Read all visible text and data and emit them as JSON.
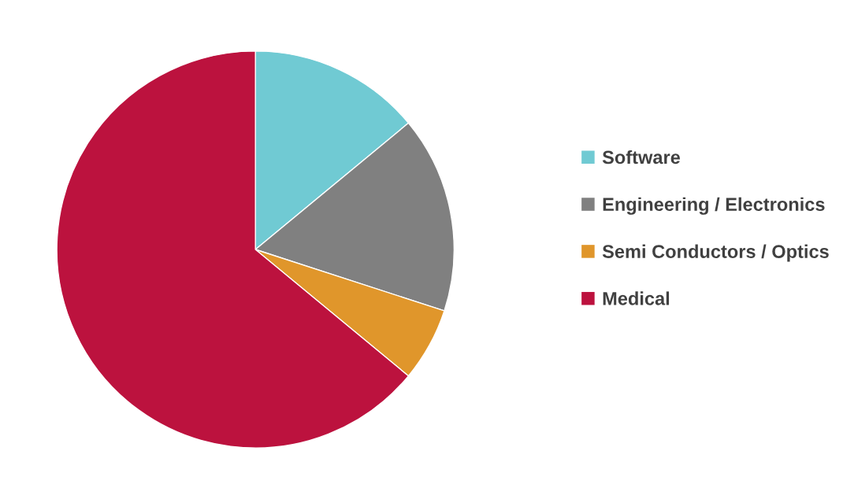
{
  "chart_data": {
    "type": "pie",
    "categories": [
      "Software",
      "Engineering / Electronics",
      "Semi Conductors / Optics",
      "Medical"
    ],
    "values": [
      14,
      16,
      6,
      64
    ],
    "colors": [
      "#70cad3",
      "#808080",
      "#e0962b",
      "#bc123e"
    ],
    "legend": "right"
  }
}
